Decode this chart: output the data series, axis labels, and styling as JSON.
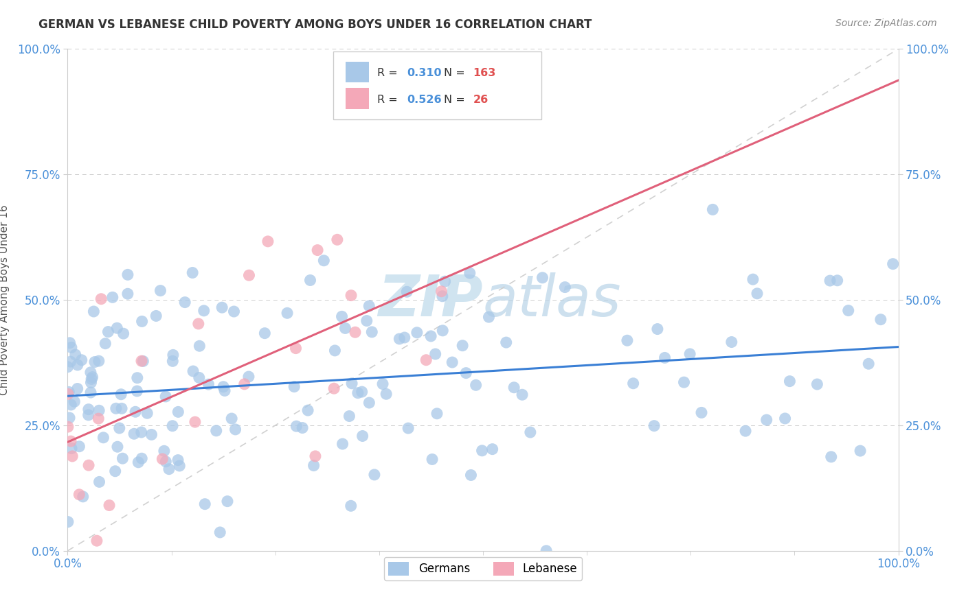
{
  "title": "GERMAN VS LEBANESE CHILD POVERTY AMONG BOYS UNDER 16 CORRELATION CHART",
  "source": "Source: ZipAtlas.com",
  "ylabel": "Child Poverty Among Boys Under 16",
  "xlim": [
    0,
    1
  ],
  "ylim": [
    0,
    1
  ],
  "xtick_labels": [
    "0.0%",
    "100.0%"
  ],
  "ytick_labels": [
    "0.0%",
    "25.0%",
    "50.0%",
    "75.0%",
    "100.0%"
  ],
  "ytick_values": [
    0.0,
    0.25,
    0.5,
    0.75,
    1.0
  ],
  "german_R": 0.31,
  "german_N": 163,
  "lebanese_R": 0.526,
  "lebanese_N": 26,
  "german_color": "#a8c8e8",
  "lebanese_color": "#f4a8b8",
  "german_line_color": "#3a7fd5",
  "lebanese_line_color": "#e0607a",
  "trend_line_color": "#cccccc",
  "background_color": "#ffffff",
  "grid_color": "#cccccc",
  "title_color": "#333333",
  "watermark_color": "#d0e4f0",
  "legend_label_german": "Germans",
  "legend_label_lebanese": "Lebanese"
}
